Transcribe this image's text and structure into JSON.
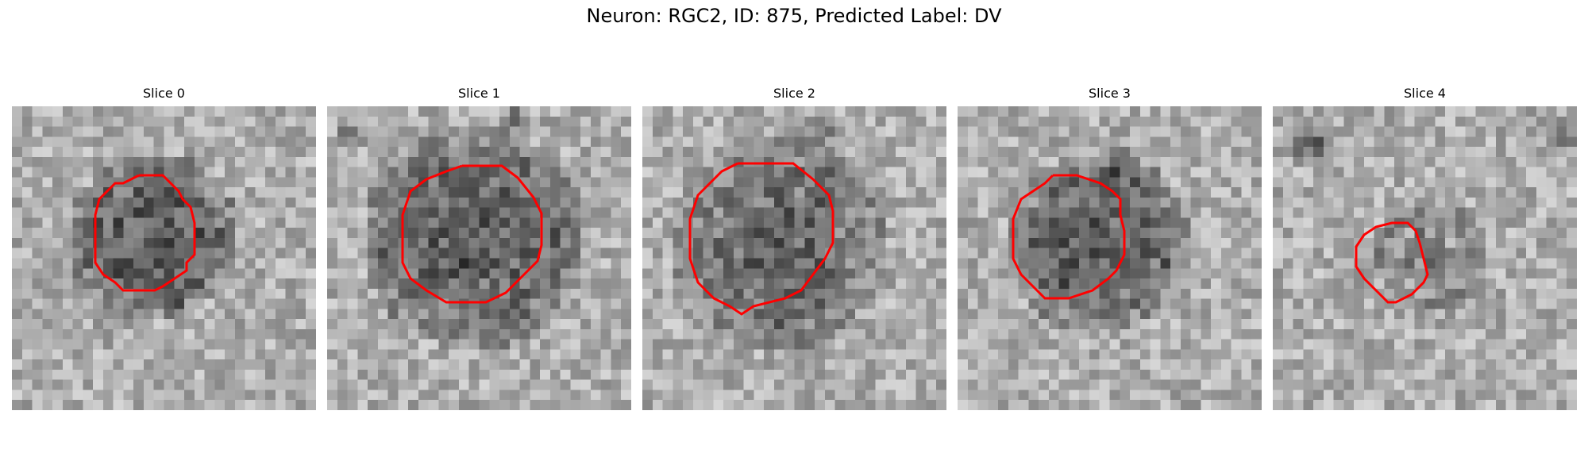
{
  "figure": {
    "title": "Neuron: RGC2, ID: 875, Predicted Label: DV"
  },
  "panels": [
    {
      "title": "Slice 0",
      "outline_color": "#ff0000"
    },
    {
      "title": "Slice 1",
      "outline_color": "#ff0000"
    },
    {
      "title": "Slice 2",
      "outline_color": "#ff0000"
    },
    {
      "title": "Slice 3",
      "outline_color": "#ff0000"
    },
    {
      "title": "Slice 4",
      "outline_color": "#ff0000"
    }
  ]
}
